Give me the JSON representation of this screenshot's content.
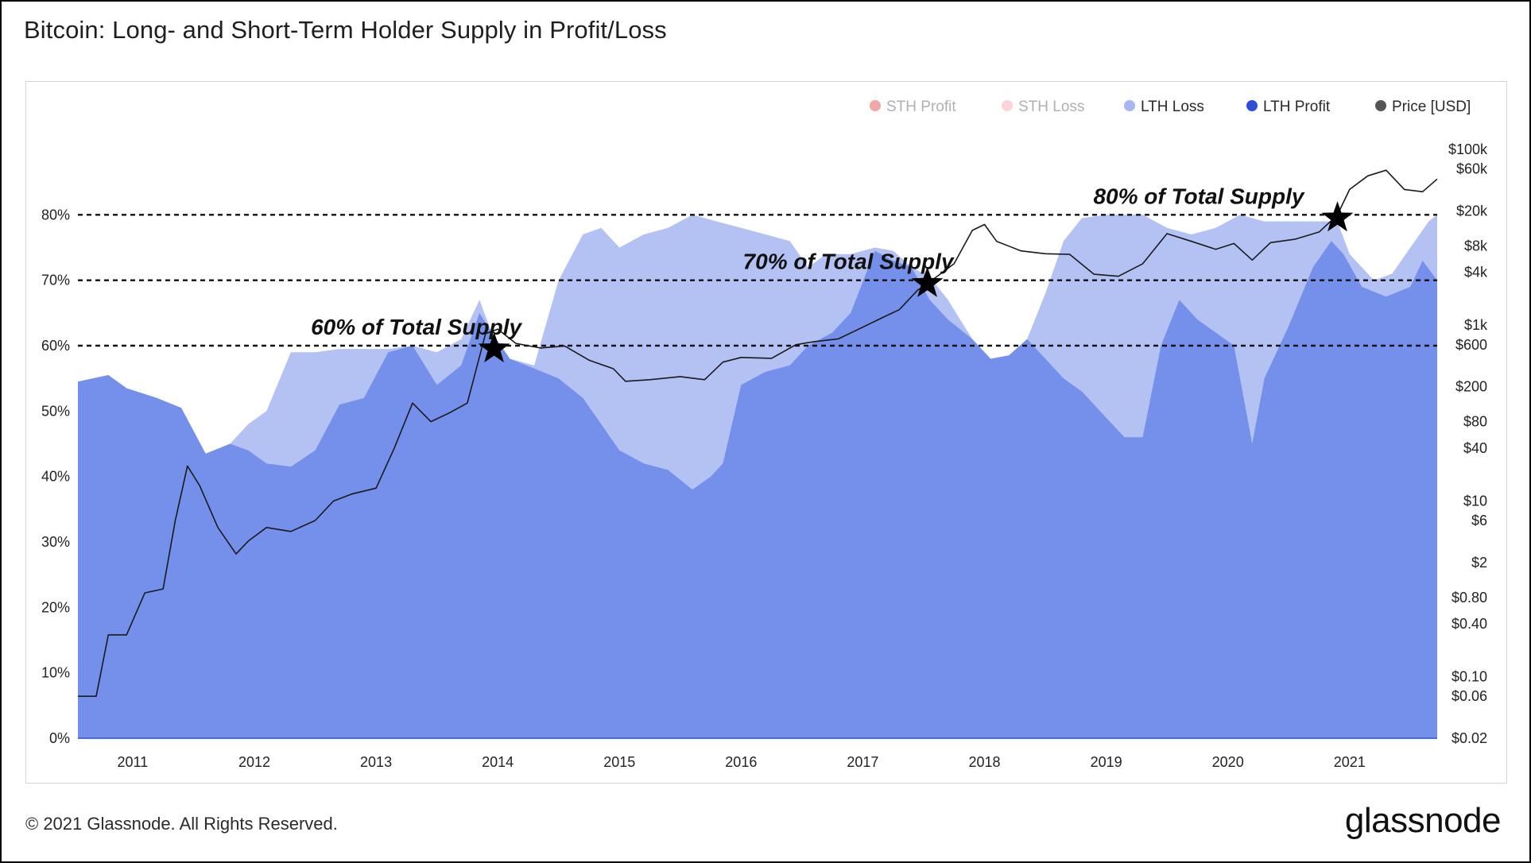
{
  "title": "Bitcoin: Long- and Short-Term Holder Supply in Profit/Loss",
  "footer": "© 2021 Glassnode. All Rights Reserved.",
  "brand": "glassnode",
  "watermark": "glassnode",
  "colors": {
    "sth_profit": "#e23a3a",
    "sth_loss": "#f4a0a8",
    "lth_loss": "#b4c2f3",
    "lth_profit": "#7590ea",
    "lth_profit_dot": "#2d4fd6",
    "lth_loss_dot": "#a7b7f0",
    "price": "#1a1a1a",
    "price_dot": "#555555"
  },
  "chart_data": {
    "type": "area",
    "x_axis": {
      "range": [
        2010.55,
        2021.72
      ],
      "ticks": [
        "2011",
        "2012",
        "2013",
        "2014",
        "2015",
        "2016",
        "2017",
        "2018",
        "2019",
        "2020",
        "2021"
      ]
    },
    "y_left": {
      "range": [
        0,
        90
      ],
      "ticks": [
        "0%",
        "10%",
        "20%",
        "30%",
        "40%",
        "50%",
        "60%",
        "70%",
        "80%"
      ]
    },
    "y_right": {
      "scale": "log",
      "range": [
        0.02,
        100000
      ],
      "ticks": [
        "$0.02",
        "$0.06",
        "$0.10",
        "$0.40",
        "$0.80",
        "$2",
        "$6",
        "$10",
        "$40",
        "$80",
        "$200",
        "$600",
        "$1k",
        "$4k",
        "$8k",
        "$20k",
        "$60k",
        "$100k"
      ]
    },
    "legend": {
      "placement": "top-right",
      "items": [
        {
          "label": "STH Profit",
          "color": "#e23a3a",
          "muted": true
        },
        {
          "label": "STH Loss",
          "color": "#f4a0a8",
          "muted": true
        },
        {
          "label": "LTH Loss",
          "color": "#a7b7f0",
          "muted": false
        },
        {
          "label": "LTH Profit",
          "color": "#2d4fd6",
          "muted": false
        },
        {
          "label": "Price [USD]",
          "color": "#555555",
          "muted": false
        }
      ]
    },
    "reference_lines": [
      {
        "y": 80,
        "label": "80% of Total Supply",
        "star_x": 2020.9
      },
      {
        "y": 70,
        "label": "70% of Total Supply",
        "star_x": 2017.53
      },
      {
        "y": 60,
        "label": "60% of Total Supply",
        "star_x": 2013.97
      }
    ],
    "series": [
      {
        "name": "LTH Loss",
        "comment_free": true,
        "points": [
          [
            2010.55,
            54.5
          ],
          [
            2010.8,
            55.5
          ],
          [
            2010.95,
            53.5
          ],
          [
            2011.2,
            52
          ],
          [
            2011.4,
            50
          ],
          [
            2011.6,
            43.5
          ],
          [
            2011.8,
            45
          ],
          [
            2011.95,
            48
          ],
          [
            2012.1,
            50
          ],
          [
            2012.3,
            59
          ],
          [
            2012.5,
            59
          ],
          [
            2012.7,
            59.5
          ],
          [
            2012.9,
            59.5
          ],
          [
            2013.1,
            59.5
          ],
          [
            2013.3,
            60
          ],
          [
            2013.5,
            59
          ],
          [
            2013.7,
            61
          ],
          [
            2013.85,
            67
          ],
          [
            2013.95,
            62
          ],
          [
            2014.1,
            58
          ],
          [
            2014.3,
            57
          ],
          [
            2014.5,
            70
          ],
          [
            2014.7,
            77
          ],
          [
            2014.85,
            78
          ],
          [
            2015.0,
            75
          ],
          [
            2015.2,
            77
          ],
          [
            2015.4,
            78
          ],
          [
            2015.6,
            80
          ],
          [
            2015.8,
            79
          ],
          [
            2016.0,
            78
          ],
          [
            2016.2,
            77
          ],
          [
            2016.4,
            76
          ],
          [
            2016.55,
            72
          ],
          [
            2016.7,
            74
          ],
          [
            2016.9,
            74
          ],
          [
            2017.1,
            75
          ],
          [
            2017.25,
            74.5
          ],
          [
            2017.4,
            72
          ],
          [
            2017.55,
            70.5
          ],
          [
            2017.7,
            67
          ],
          [
            2017.9,
            61
          ],
          [
            2018.05,
            58
          ],
          [
            2018.2,
            58.5
          ],
          [
            2018.35,
            61
          ],
          [
            2018.5,
            68
          ],
          [
            2018.65,
            76
          ],
          [
            2018.8,
            79.5
          ],
          [
            2019.0,
            80
          ],
          [
            2019.3,
            80
          ],
          [
            2019.5,
            78
          ],
          [
            2019.7,
            77
          ],
          [
            2019.9,
            78
          ],
          [
            2020.1,
            80
          ],
          [
            2020.3,
            79
          ],
          [
            2020.5,
            79
          ],
          [
            2020.7,
            79
          ],
          [
            2020.9,
            79
          ],
          [
            2021.0,
            74
          ],
          [
            2021.2,
            70
          ],
          [
            2021.35,
            71
          ],
          [
            2021.5,
            75
          ],
          [
            2021.65,
            79
          ],
          [
            2021.72,
            80
          ]
        ]
      },
      {
        "name": "LTH Profit",
        "points": [
          [
            2010.55,
            54.5
          ],
          [
            2010.8,
            55.5
          ],
          [
            2010.95,
            53.5
          ],
          [
            2011.2,
            52
          ],
          [
            2011.4,
            50.5
          ],
          [
            2011.6,
            43.5
          ],
          [
            2011.8,
            45
          ],
          [
            2011.95,
            44
          ],
          [
            2012.1,
            42
          ],
          [
            2012.3,
            41.5
          ],
          [
            2012.5,
            44
          ],
          [
            2012.7,
            51
          ],
          [
            2012.9,
            52
          ],
          [
            2013.1,
            59
          ],
          [
            2013.3,
            60
          ],
          [
            2013.5,
            54
          ],
          [
            2013.7,
            57
          ],
          [
            2013.85,
            65
          ],
          [
            2013.95,
            62
          ],
          [
            2014.1,
            58
          ],
          [
            2014.3,
            56.5
          ],
          [
            2014.5,
            55
          ],
          [
            2014.7,
            52
          ],
          [
            2014.85,
            48
          ],
          [
            2015.0,
            44
          ],
          [
            2015.2,
            42
          ],
          [
            2015.4,
            41
          ],
          [
            2015.6,
            38
          ],
          [
            2015.75,
            40
          ],
          [
            2015.85,
            42
          ],
          [
            2016.0,
            54
          ],
          [
            2016.2,
            56
          ],
          [
            2016.4,
            57
          ],
          [
            2016.55,
            60
          ],
          [
            2016.75,
            62
          ],
          [
            2016.9,
            65
          ],
          [
            2017.1,
            74.5
          ],
          [
            2017.25,
            73
          ],
          [
            2017.4,
            72
          ],
          [
            2017.55,
            67
          ],
          [
            2017.7,
            64
          ],
          [
            2017.9,
            61
          ],
          [
            2018.05,
            58
          ],
          [
            2018.2,
            58.5
          ],
          [
            2018.35,
            61
          ],
          [
            2018.5,
            58
          ],
          [
            2018.65,
            55
          ],
          [
            2018.8,
            53
          ],
          [
            2019.0,
            49
          ],
          [
            2019.15,
            46
          ],
          [
            2019.3,
            46
          ],
          [
            2019.45,
            60
          ],
          [
            2019.6,
            67
          ],
          [
            2019.75,
            64
          ],
          [
            2019.9,
            62
          ],
          [
            2020.05,
            60
          ],
          [
            2020.2,
            45
          ],
          [
            2020.3,
            55
          ],
          [
            2020.5,
            63
          ],
          [
            2020.7,
            72
          ],
          [
            2020.85,
            76
          ],
          [
            2020.95,
            74
          ],
          [
            2021.1,
            69
          ],
          [
            2021.3,
            67.5
          ],
          [
            2021.5,
            69
          ],
          [
            2021.6,
            73
          ],
          [
            2021.72,
            70
          ]
        ]
      },
      {
        "name": "Price [USD]",
        "points": [
          [
            2010.55,
            0.06
          ],
          [
            2010.7,
            0.06
          ],
          [
            2010.8,
            0.3
          ],
          [
            2010.95,
            0.3
          ],
          [
            2011.1,
            0.9
          ],
          [
            2011.25,
            1
          ],
          [
            2011.35,
            6
          ],
          [
            2011.45,
            25
          ],
          [
            2011.55,
            15
          ],
          [
            2011.7,
            5
          ],
          [
            2011.85,
            2.5
          ],
          [
            2011.95,
            3.5
          ],
          [
            2012.1,
            5
          ],
          [
            2012.3,
            4.5
          ],
          [
            2012.5,
            6
          ],
          [
            2012.65,
            10
          ],
          [
            2012.8,
            12
          ],
          [
            2013.0,
            14
          ],
          [
            2013.15,
            40
          ],
          [
            2013.3,
            130
          ],
          [
            2013.45,
            80
          ],
          [
            2013.6,
            100
          ],
          [
            2013.75,
            130
          ],
          [
            2013.9,
            800
          ],
          [
            2014.0,
            900
          ],
          [
            2014.15,
            620
          ],
          [
            2014.35,
            550
          ],
          [
            2014.55,
            580
          ],
          [
            2014.75,
            400
          ],
          [
            2014.95,
            320
          ],
          [
            2015.05,
            230
          ],
          [
            2015.25,
            240
          ],
          [
            2015.5,
            260
          ],
          [
            2015.7,
            240
          ],
          [
            2015.85,
            380
          ],
          [
            2016.0,
            430
          ],
          [
            2016.25,
            420
          ],
          [
            2016.45,
            600
          ],
          [
            2016.6,
            650
          ],
          [
            2016.8,
            700
          ],
          [
            2017.0,
            950
          ],
          [
            2017.15,
            1200
          ],
          [
            2017.3,
            1500
          ],
          [
            2017.45,
            2500
          ],
          [
            2017.6,
            3500
          ],
          [
            2017.75,
            5000
          ],
          [
            2017.9,
            12000
          ],
          [
            2018.0,
            14000
          ],
          [
            2018.1,
            9000
          ],
          [
            2018.3,
            7000
          ],
          [
            2018.5,
            6500
          ],
          [
            2018.7,
            6400
          ],
          [
            2018.9,
            3800
          ],
          [
            2019.1,
            3600
          ],
          [
            2019.3,
            5000
          ],
          [
            2019.5,
            11000
          ],
          [
            2019.7,
            9000
          ],
          [
            2019.9,
            7300
          ],
          [
            2020.05,
            8500
          ],
          [
            2020.2,
            5500
          ],
          [
            2020.35,
            8700
          ],
          [
            2020.55,
            9500
          ],
          [
            2020.75,
            11500
          ],
          [
            2020.9,
            18000
          ],
          [
            2021.0,
            35000
          ],
          [
            2021.15,
            50000
          ],
          [
            2021.3,
            58000
          ],
          [
            2021.45,
            35000
          ],
          [
            2021.6,
            33000
          ],
          [
            2021.72,
            46000
          ]
        ]
      }
    ]
  }
}
